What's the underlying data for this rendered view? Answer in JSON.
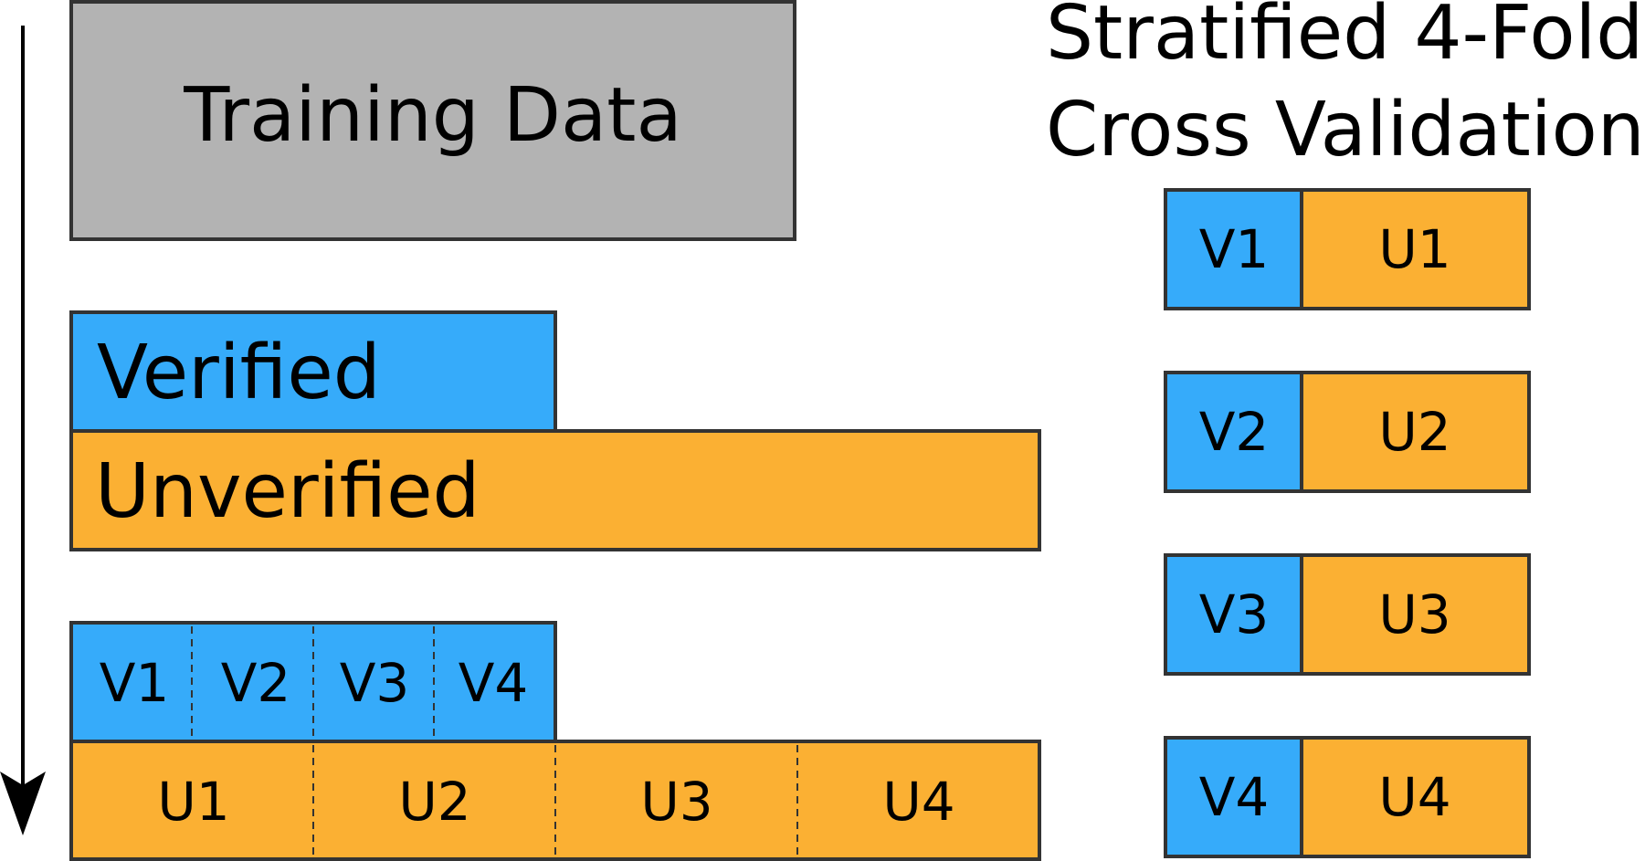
{
  "title_line1": "Stratified 4-Fold",
  "title_line2": "Cross Validation",
  "training_label": "Training Data",
  "verified_label": "Verified",
  "unverified_label": "Unverified",
  "verified_splits": [
    "V1",
    "V2",
    "V3",
    "V4"
  ],
  "unverified_splits": [
    "U1",
    "U2",
    "U3",
    "U4"
  ],
  "folds": [
    {
      "v": "V1",
      "u": "U1"
    },
    {
      "v": "V2",
      "u": "U2"
    },
    {
      "v": "V3",
      "u": "U3"
    },
    {
      "v": "V4",
      "u": "U4"
    }
  ],
  "colors": {
    "training": "#b3b3b3",
    "verified": "#36abfa",
    "unverified": "#fbb033",
    "stroke": "#333333"
  }
}
